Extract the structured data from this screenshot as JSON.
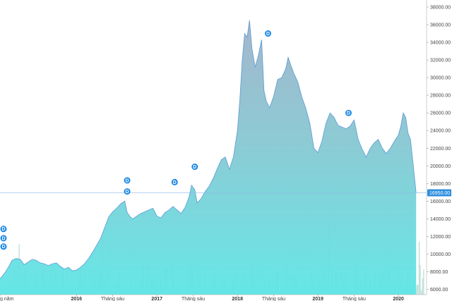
{
  "chart_data": {
    "type": "area",
    "title": "",
    "xlabel": "",
    "ylabel": "",
    "ylim": [
      5400,
      38800
    ],
    "xlim": [
      2015.05,
      2020.35
    ],
    "y_ticks": [
      6000,
      8000,
      10000,
      12000,
      14000,
      16000,
      18000,
      20000,
      22000,
      24000,
      26000,
      28000,
      30000,
      32000,
      34000,
      36000,
      38000
    ],
    "y_tick_labels": [
      "6000.00",
      "8000.00",
      "10000.00",
      "12000.00",
      "14000.00",
      "16000.00",
      "18000.00",
      "20000.00",
      "22000.00",
      "24000.00",
      "26000.00",
      "28000.00",
      "30000.00",
      "32000.00",
      "34000.00",
      "36000.00",
      "38000.00"
    ],
    "x_ticks": [
      {
        "x": 2015.05,
        "label": "g năm",
        "major": false
      },
      {
        "x": 2016.0,
        "label": "2016",
        "major": true
      },
      {
        "x": 2016.45,
        "label": "Tháng sáu",
        "major": false
      },
      {
        "x": 2017.0,
        "label": "2017",
        "major": true
      },
      {
        "x": 2017.45,
        "label": "Tháng sáu",
        "major": false
      },
      {
        "x": 2018.0,
        "label": "2018",
        "major": true
      },
      {
        "x": 2018.45,
        "label": "Tháng sáu",
        "major": false
      },
      {
        "x": 2019.0,
        "label": "2019",
        "major": true
      },
      {
        "x": 2019.45,
        "label": "Tháng sáu",
        "major": false
      },
      {
        "x": 2020.0,
        "label": "2020",
        "major": true
      }
    ],
    "current_price": {
      "value": 16950,
      "label": "16950.00"
    },
    "series": [
      {
        "x": [
          2015.05,
          2015.08,
          2015.12,
          2015.16,
          2015.2,
          2015.25,
          2015.3,
          2015.35,
          2015.4,
          2015.45,
          2015.5,
          2015.55,
          2015.6,
          2015.65,
          2015.7,
          2015.75,
          2015.8,
          2015.85,
          2015.9,
          2015.95,
          2016.0,
          2016.05,
          2016.1,
          2016.15,
          2016.2,
          2016.25,
          2016.3,
          2016.35,
          2016.4,
          2016.45,
          2016.5,
          2016.55,
          2016.6,
          2016.63,
          2016.67,
          2016.7,
          2016.75,
          2016.8,
          2016.85,
          2016.9,
          2016.95,
          2017.0,
          2017.05,
          2017.1,
          2017.15,
          2017.2,
          2017.25,
          2017.3,
          2017.35,
          2017.4,
          2017.43,
          2017.47,
          2017.5,
          2017.55,
          2017.6,
          2017.65,
          2017.7,
          2017.75,
          2017.8,
          2017.85,
          2017.9,
          2017.95,
          2018.0,
          2018.03,
          2018.06,
          2018.09,
          2018.12,
          2018.15,
          2018.18,
          2018.22,
          2018.26,
          2018.3,
          2018.33,
          2018.36,
          2018.4,
          2018.45,
          2018.5,
          2018.55,
          2018.6,
          2018.63,
          2018.66,
          2018.7,
          2018.75,
          2018.8,
          2018.85,
          2018.9,
          2018.95,
          2019.0,
          2019.05,
          2019.1,
          2019.15,
          2019.2,
          2019.25,
          2019.3,
          2019.35,
          2019.4,
          2019.45,
          2019.5,
          2019.55,
          2019.6,
          2019.65,
          2019.7,
          2019.75,
          2019.8,
          2019.85,
          2019.9,
          2019.95,
          2020.0,
          2020.03,
          2020.06,
          2020.09,
          2020.12,
          2020.15,
          2020.18,
          2020.22
        ],
        "values": [
          7200,
          7500,
          8000,
          8600,
          9300,
          9500,
          9400,
          8800,
          9100,
          9400,
          9300,
          9000,
          8900,
          8700,
          8900,
          9000,
          8600,
          8300,
          8500,
          8100,
          8200,
          8500,
          8900,
          9500,
          10200,
          11000,
          11800,
          13000,
          14200,
          14800,
          15200,
          15700,
          16000,
          14700,
          14200,
          14000,
          14300,
          14600,
          14800,
          15000,
          15200,
          14300,
          14100,
          14700,
          15000,
          15400,
          15000,
          14600,
          15300,
          16500,
          17800,
          17300,
          15800,
          16300,
          17100,
          17700,
          18600,
          19700,
          20700,
          21000,
          19600,
          21000,
          24000,
          27500,
          32000,
          35000,
          34600,
          36500,
          33300,
          31200,
          32500,
          34300,
          28500,
          27300,
          26600,
          27900,
          29800,
          30000,
          31000,
          32300,
          31500,
          30500,
          29500,
          27800,
          26500,
          24800,
          22000,
          21500,
          22800,
          24800,
          26000,
          25500,
          24600,
          24400,
          24200,
          24500,
          25200,
          23000,
          21900,
          21000,
          22000,
          22600,
          23000,
          22000,
          21400,
          22000,
          22800,
          23500,
          24500,
          26000,
          25500,
          23700,
          23000,
          20500,
          16900
        ]
      }
    ],
    "dividend_markers": [
      {
        "x": 2015.05,
        "y": 12850,
        "label": "D"
      },
      {
        "x": 2015.05,
        "y": 11800,
        "label": "D"
      },
      {
        "x": 2015.05,
        "y": 10850,
        "label": "D"
      },
      {
        "x": 2016.63,
        "y": 18350,
        "label": "D"
      },
      {
        "x": 2016.63,
        "y": 17100,
        "label": "D"
      },
      {
        "x": 2017.22,
        "y": 18150,
        "label": "D"
      },
      {
        "x": 2017.47,
        "y": 19900,
        "label": "D"
      },
      {
        "x": 2018.38,
        "y": 35000,
        "label": "D"
      },
      {
        "x": 2019.38,
        "y": 26000,
        "label": "D"
      }
    ]
  }
}
